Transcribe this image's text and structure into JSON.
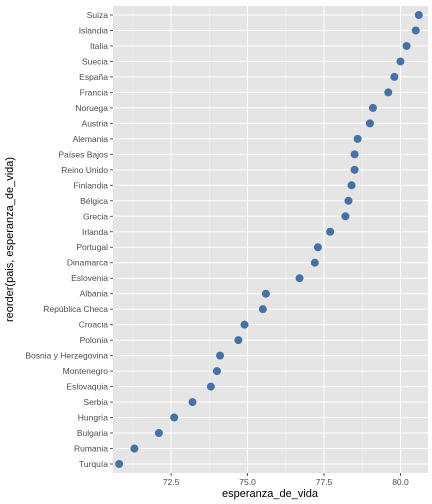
{
  "chart_data": {
    "type": "scatter",
    "xlabel": "esperanza_de_vida",
    "ylabel": "reorder(pais, esperanza_de_vida)",
    "xlim": [
      70.6,
      80.9
    ],
    "x_ticks": [
      72.5,
      75.0,
      77.5,
      80.0
    ],
    "x_tick_labels": [
      "72.5",
      "75.0",
      "77.5",
      "80.0"
    ],
    "grid": true,
    "point_color": "#4472A8",
    "panel_color": "#E5E5E5",
    "points": [
      {
        "label": "Suiza",
        "value": 80.6
      },
      {
        "label": "Islandia",
        "value": 80.5
      },
      {
        "label": "Italia",
        "value": 80.2
      },
      {
        "label": "Suecia",
        "value": 80.0
      },
      {
        "label": "España",
        "value": 79.8
      },
      {
        "label": "Francia",
        "value": 79.6
      },
      {
        "label": "Noruega",
        "value": 79.1
      },
      {
        "label": "Austria",
        "value": 79.0
      },
      {
        "label": "Alemania",
        "value": 78.6
      },
      {
        "label": "Países Bajos",
        "value": 78.5
      },
      {
        "label": "Reino Unido",
        "value": 78.5
      },
      {
        "label": "Finlandia",
        "value": 78.4
      },
      {
        "label": "Bélgica",
        "value": 78.3
      },
      {
        "label": "Grecia",
        "value": 78.2
      },
      {
        "label": "Irlanda",
        "value": 77.7
      },
      {
        "label": "Portugal",
        "value": 77.3
      },
      {
        "label": "Dinamarca",
        "value": 77.2
      },
      {
        "label": "Eslovenia",
        "value": 76.7
      },
      {
        "label": "Albania",
        "value": 75.6
      },
      {
        "label": "República Checa",
        "value": 75.5
      },
      {
        "label": "Croacia",
        "value": 74.9
      },
      {
        "label": "Polonia",
        "value": 74.7
      },
      {
        "label": "Bosnia y Herzegovina",
        "value": 74.1
      },
      {
        "label": "Montenegro",
        "value": 74.0
      },
      {
        "label": "Eslovaquia",
        "value": 73.8
      },
      {
        "label": "Serbia",
        "value": 73.2
      },
      {
        "label": "Hungría",
        "value": 72.6
      },
      {
        "label": "Bulgaria",
        "value": 72.1
      },
      {
        "label": "Rumania",
        "value": 71.3
      },
      {
        "label": "Turquía",
        "value": 70.8
      }
    ]
  }
}
